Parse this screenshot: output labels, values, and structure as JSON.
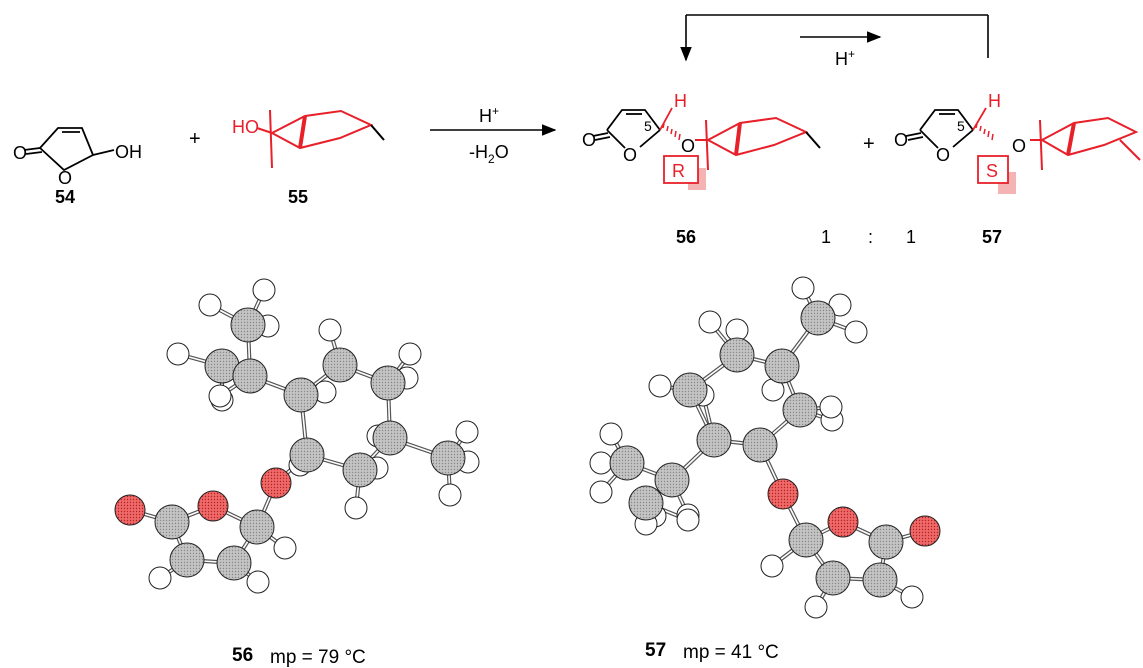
{
  "reaction": {
    "compound_54": {
      "number": "54",
      "atoms": {
        "carbonyl_o": "O",
        "ring_o": "O",
        "hydroxyl": "OH"
      }
    },
    "plus_1": "+",
    "compound_55": {
      "number": "55",
      "hydroxyl": "HO"
    },
    "arrow_main": {
      "top": "H",
      "top_sup": "+",
      "bottom": "-H",
      "bottom_sub": "2",
      "bottom_end": "O"
    },
    "compound_56": {
      "number": "56",
      "atoms": {
        "carbonyl_o": "O",
        "ring_o": "O",
        "ether_o": "O",
        "h": "H"
      },
      "position": "5",
      "config": "R"
    },
    "plus_2": "+",
    "compound_57": {
      "number": "57",
      "atoms": {
        "carbonyl_o": "O",
        "ring_o": "O",
        "ether_o": "O",
        "h": "H"
      },
      "position": "5",
      "config": "S"
    },
    "ratio": {
      "left": "1",
      "colon": ":",
      "right": "1"
    },
    "equilibrium": {
      "label": "H",
      "label_sup": "+"
    }
  },
  "structures_3d": {
    "left": {
      "number": "56",
      "caption": "mp = 79 °C"
    },
    "right": {
      "number": "57",
      "caption": "mp = 41 °C"
    }
  },
  "colors": {
    "highlight": "#e8202a",
    "atom_c": "#b8b8b8",
    "atom_h": "#ffffff",
    "atom_o": "#e84848",
    "shadow": "#f4b4b4"
  }
}
